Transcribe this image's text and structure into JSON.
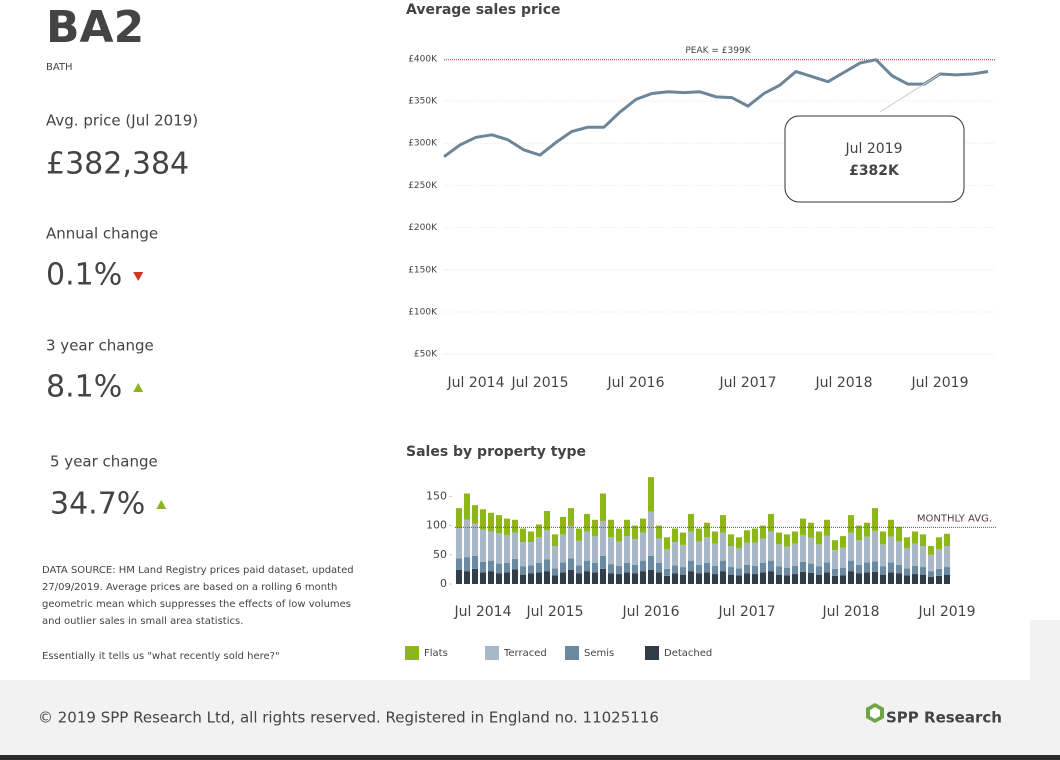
{
  "header": {
    "code": "BA2",
    "area": "BATH"
  },
  "kpis": [
    {
      "label": "Avg. price (Jul 2019)",
      "value": "£382,384",
      "color": "#333333"
    },
    {
      "label": "Annual change",
      "value": "0.1%",
      "color": "#d0341f",
      "arrow": "down"
    },
    {
      "label": "3 year change",
      "value": "8.1%",
      "color": "#8db51d",
      "arrow": "up"
    },
    {
      "label": "5 year change",
      "value": "34.7%",
      "color": "#8db51d",
      "arrow": "up"
    }
  ],
  "notes": {
    "source": [
      "DATA SOURCE: HM Land Registry prices paid dataset, updated",
      "27/09/2019. Average prices are based on a rolling 6 month",
      "geometric mean which suppresses the effects of low volumes",
      "and outlier sales in small area statistics."
    ],
    "summary": "Essentially it tells us \"what recently sold here?\""
  },
  "footer": {
    "copyright": "© 2019 SPP Research Ltd, all rights reserved. Registered in England no. 11025116",
    "brand": "SPP Research"
  },
  "chart_data": [
    {
      "type": "line",
      "title": "Average sales price",
      "color": "#6d8599",
      "grid": true,
      "categories": [
        null,
        null,
        "Jul 2014",
        null,
        null,
        null,
        "Jul 2015",
        null,
        null,
        null,
        null,
        null,
        "Jul 2016",
        null,
        null,
        null,
        null,
        null,
        null,
        "Jul 2017",
        null,
        null,
        null,
        null,
        null,
        "Jul 2018",
        null,
        null,
        null,
        null,
        null,
        "Jul 2019",
        null,
        null,
        null
      ],
      "values": [
        284000,
        298000,
        307000,
        310000,
        304000,
        292000,
        286000,
        301000,
        314000,
        319000,
        319000,
        337000,
        352000,
        359000,
        361000,
        360000,
        361000,
        355000,
        354000,
        344000,
        359000,
        369000,
        385000,
        379000,
        373000,
        384000,
        395000,
        399000,
        380000,
        370000,
        370000,
        382000,
        381000,
        382000,
        385000
      ],
      "ylim": [
        30000,
        420000
      ],
      "yticks": [
        {
          "value": 50000,
          "label": "£50K"
        },
        {
          "value": 100000,
          "label": "£100K"
        },
        {
          "value": 150000,
          "label": "£150K"
        },
        {
          "value": 200000,
          "label": "£200K"
        },
        {
          "value": 250000,
          "label": "£250K"
        },
        {
          "value": 300000,
          "label": "£300K"
        },
        {
          "value": 350000,
          "label": "£350K"
        },
        {
          "value": 400000,
          "label": "£400K"
        }
      ],
      "peak": {
        "value": 399000,
        "label": "PEAK = £399K",
        "color": "#b5332a"
      },
      "callout": {
        "title": "Jul 2019",
        "value": 382000,
        "label": "£382K"
      }
    },
    {
      "type": "stacked-bar",
      "title": "Sales by property type",
      "legend": "bottom",
      "categories": [
        null,
        null,
        null,
        "Jul 2014",
        null,
        null,
        null,
        null,
        null,
        null,
        null,
        null,
        "Jul 2015",
        null,
        null,
        null,
        null,
        null,
        null,
        null,
        null,
        null,
        null,
        null,
        "Jul 2016",
        null,
        null,
        null,
        null,
        null,
        null,
        null,
        null,
        null,
        null,
        null,
        "Jul 2017",
        null,
        null,
        null,
        null,
        null,
        null,
        null,
        null,
        null,
        null,
        null,
        null,
        "Jul 2018",
        null,
        null,
        null,
        null,
        null,
        null,
        null,
        null,
        null,
        null,
        null,
        "Jul 2019"
      ],
      "series": [
        {
          "name": "Flats",
          "color": "#8db51d",
          "values": [
            34,
            45,
            32,
            35,
            32,
            31,
            28,
            22,
            23,
            18,
            22,
            33,
            20,
            30,
            31,
            21,
            30,
            28,
            47,
            30,
            22,
            28,
            23,
            24,
            59,
            22,
            20,
            23,
            21,
            30,
            22,
            25,
            21,
            30,
            20,
            19,
            21,
            24,
            22,
            30,
            20,
            21,
            21,
            28,
            26,
            22,
            27,
            17,
            20,
            30,
            25,
            24,
            39,
            22,
            29,
            25,
            19,
            21,
            20,
            15,
            20,
            21
          ]
        },
        {
          "name": "Terraced",
          "color": "#a8b8c6",
          "values": [
            52,
            64,
            55,
            55,
            50,
            52,
            48,
            45,
            42,
            40,
            44,
            50,
            38,
            48,
            55,
            42,
            50,
            46,
            60,
            46,
            42,
            46,
            44,
            48,
            76,
            42,
            34,
            40,
            38,
            50,
            40,
            44,
            38,
            48,
            36,
            34,
            38,
            40,
            42,
            50,
            38,
            36,
            38,
            46,
            44,
            38,
            46,
            32,
            34,
            48,
            42,
            44,
            52,
            38,
            44,
            40,
            34,
            38,
            36,
            28,
            34,
            36
          ]
        },
        {
          "name": "Semis",
          "color": "#6b8aa1",
          "values": [
            20,
            24,
            22,
            18,
            18,
            17,
            16,
            18,
            14,
            14,
            16,
            20,
            12,
            17,
            20,
            14,
            18,
            16,
            22,
            16,
            14,
            16,
            15,
            18,
            24,
            16,
            12,
            14,
            13,
            18,
            15,
            16,
            14,
            18,
            13,
            12,
            15,
            14,
            16,
            18,
            14,
            13,
            14,
            17,
            16,
            14,
            17,
            12,
            13,
            18,
            15,
            17,
            18,
            14,
            17,
            15,
            12,
            14,
            13,
            10,
            12,
            13
          ]
        },
        {
          "name": "Detached",
          "color": "#333d47",
          "values": [
            24,
            22,
            26,
            20,
            22,
            18,
            20,
            25,
            16,
            18,
            20,
            22,
            15,
            20,
            24,
            18,
            22,
            20,
            26,
            18,
            17,
            20,
            18,
            22,
            24,
            20,
            14,
            18,
            16,
            22,
            18,
            20,
            17,
            22,
            16,
            15,
            18,
            17,
            20,
            22,
            16,
            15,
            17,
            21,
            19,
            16,
            20,
            14,
            15,
            22,
            18,
            20,
            21,
            16,
            20,
            18,
            15,
            17,
            16,
            12,
            14,
            16
          ]
        }
      ],
      "ylim": [
        0,
        185
      ],
      "yticks": [
        0,
        50,
        100,
        150
      ],
      "reference": {
        "value": 97,
        "label": "MONTHLY AVG.",
        "color": "#b5332a"
      }
    }
  ]
}
